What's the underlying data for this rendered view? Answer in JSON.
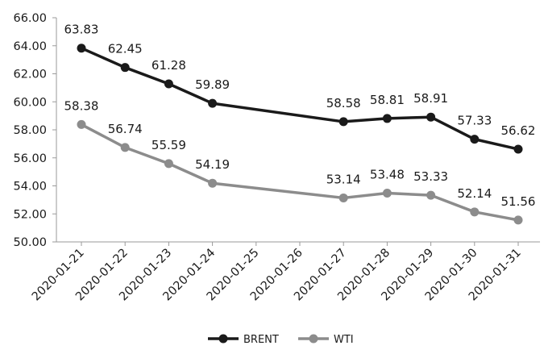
{
  "chart_data": {
    "type": "line",
    "title": "",
    "xlabel": "",
    "ylabel": "",
    "x": [
      "2020-01-21",
      "2020-01-22",
      "2020-01-23",
      "2020-01-24",
      "2020-01-25",
      "2020-01-26",
      "2020-01-27",
      "2020-01-28",
      "2020-01-29",
      "2020-01-30",
      "2020-01-31"
    ],
    "ylim": [
      50,
      66
    ],
    "yticks": [
      "50.00",
      "52.00",
      "54.00",
      "56.00",
      "58.00",
      "60.00",
      "62.00",
      "64.00",
      "66.00"
    ],
    "grid": false,
    "legend_position": "bottom-center",
    "series": [
      {
        "name": "BRENT",
        "color": "#1a1a1a",
        "points": [
          {
            "x": "2020-01-21",
            "y": 63.83,
            "label": "63.83"
          },
          {
            "x": "2020-01-22",
            "y": 62.45,
            "label": "62.45"
          },
          {
            "x": "2020-01-23",
            "y": 61.28,
            "label": "61.28"
          },
          {
            "x": "2020-01-24",
            "y": 59.89,
            "label": "59.89"
          },
          {
            "x": "2020-01-27",
            "y": 58.58,
            "label": "58.58"
          },
          {
            "x": "2020-01-28",
            "y": 58.81,
            "label": "58.81"
          },
          {
            "x": "2020-01-29",
            "y": 58.91,
            "label": "58.91"
          },
          {
            "x": "2020-01-30",
            "y": 57.33,
            "label": "57.33"
          },
          {
            "x": "2020-01-31",
            "y": 56.62,
            "label": "56.62"
          }
        ]
      },
      {
        "name": "WTI",
        "color": "#8c8c8c",
        "points": [
          {
            "x": "2020-01-21",
            "y": 58.38,
            "label": "58.38"
          },
          {
            "x": "2020-01-22",
            "y": 56.74,
            "label": "56.74"
          },
          {
            "x": "2020-01-23",
            "y": 55.59,
            "label": "55.59"
          },
          {
            "x": "2020-01-24",
            "y": 54.19,
            "label": "54.19"
          },
          {
            "x": "2020-01-27",
            "y": 53.14,
            "label": "53.14"
          },
          {
            "x": "2020-01-28",
            "y": 53.48,
            "label": "53.48"
          },
          {
            "x": "2020-01-29",
            "y": 53.33,
            "label": "53.33"
          },
          {
            "x": "2020-01-30",
            "y": 52.14,
            "label": "52.14"
          },
          {
            "x": "2020-01-31",
            "y": 51.56,
            "label": "51.56"
          }
        ]
      }
    ]
  }
}
